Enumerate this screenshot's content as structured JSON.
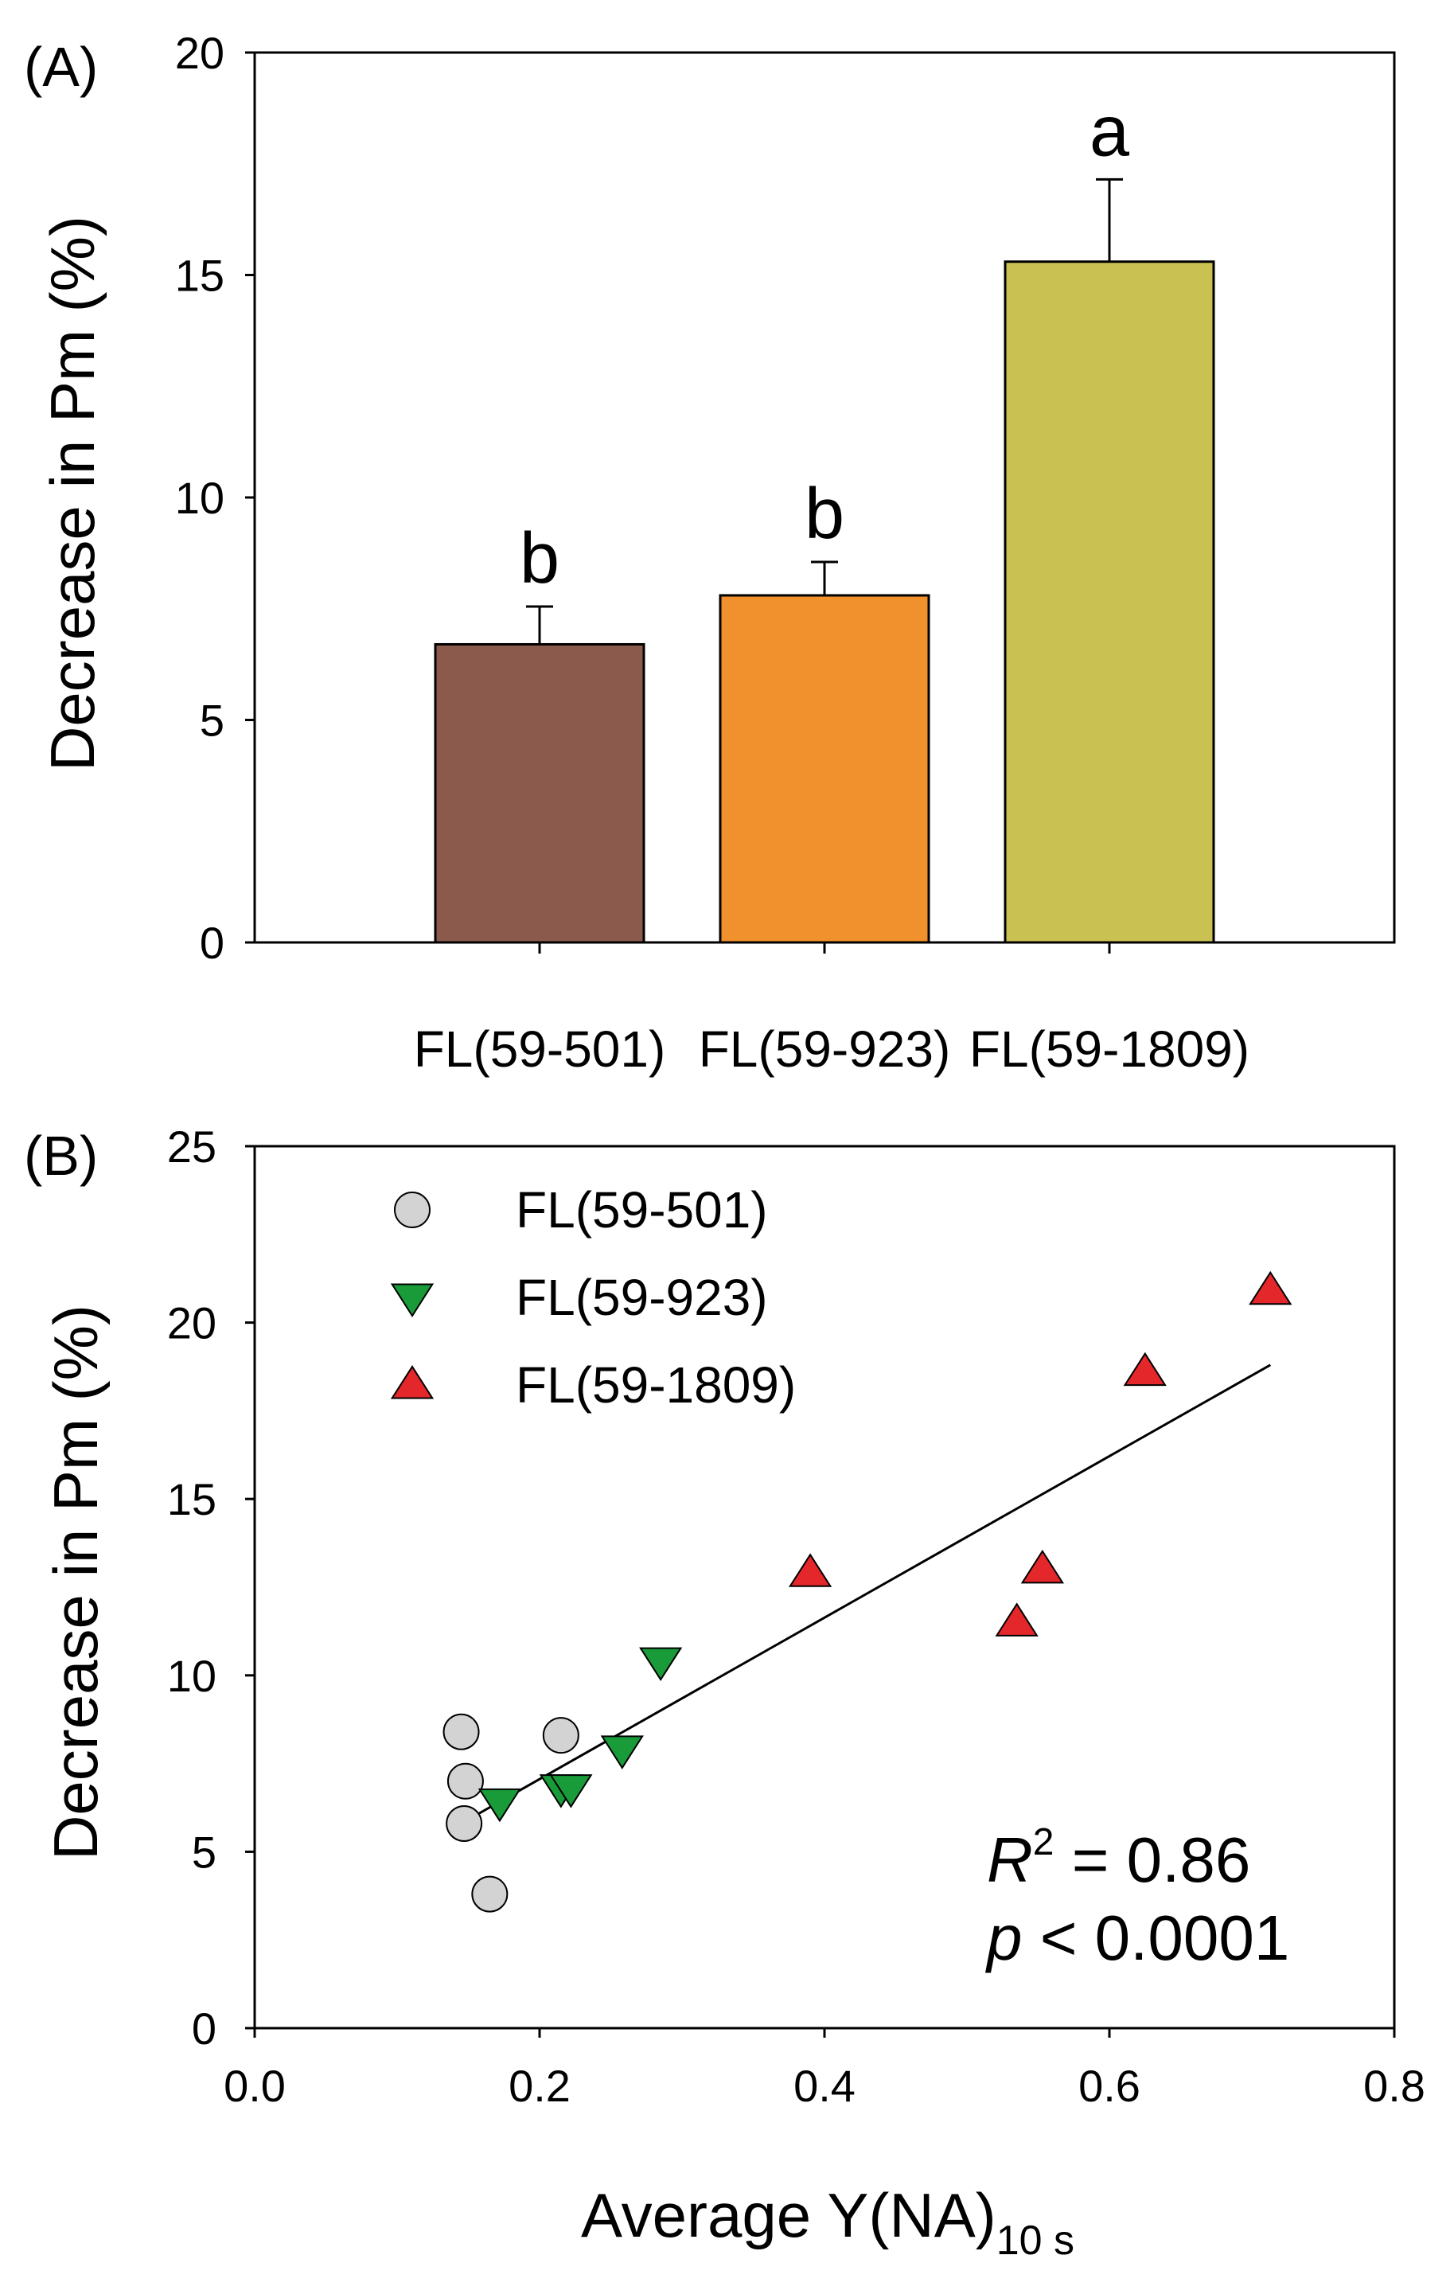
{
  "chart_data": [
    {
      "type": "bar",
      "panel_label": "(A)",
      "title": "",
      "xlabel": "",
      "ylabel": "Decrease in Pm (%)",
      "ylim": [
        0,
        20
      ],
      "yticks": [
        "0",
        "5",
        "10",
        "15",
        "20"
      ],
      "categories": [
        "FL(59-501)",
        "FL(59-923)",
        "FL(59-1809)"
      ],
      "values": [
        6.7,
        7.8,
        15.3
      ],
      "errors": [
        0.85,
        0.75,
        1.85
      ],
      "letters": [
        "b",
        "b",
        "a"
      ],
      "colors": [
        "#8B5A4C",
        "#F0912D",
        "#C9C152"
      ]
    },
    {
      "type": "scatter",
      "panel_label": "(B)",
      "title": "",
      "xlabel": "Average Y(NA)",
      "xlabel_subscript": "10 s",
      "ylabel": "Decrease in Pm (%)",
      "xlim": [
        0.0,
        0.8
      ],
      "ylim": [
        0,
        25
      ],
      "xticks": [
        "0.0",
        "0.2",
        "0.4",
        "0.6",
        "0.8"
      ],
      "yticks": [
        "0",
        "5",
        "10",
        "15",
        "20",
        "25"
      ],
      "series": [
        {
          "name": "FL(59-501)",
          "marker": "circle",
          "color": "#D3D3D3",
          "points": [
            [
              0.145,
              8.4
            ],
            [
              0.148,
              7.0
            ],
            [
              0.147,
              5.8
            ],
            [
              0.165,
              3.8
            ],
            [
              0.215,
              8.3
            ]
          ]
        },
        {
          "name": "FL(59-923)",
          "marker": "triangle-down",
          "color": "#1A9B3A",
          "points": [
            [
              0.172,
              6.4
            ],
            [
              0.215,
              6.8
            ],
            [
              0.222,
              6.8
            ],
            [
              0.258,
              7.9
            ],
            [
              0.285,
              10.4
            ]
          ]
        },
        {
          "name": "FL(59-1809)",
          "marker": "triangle-up",
          "color": "#E3272B",
          "points": [
            [
              0.39,
              12.9
            ],
            [
              0.535,
              11.5
            ],
            [
              0.553,
              13.0
            ],
            [
              0.625,
              18.6
            ],
            [
              0.713,
              20.9
            ]
          ]
        }
      ],
      "fit_line": {
        "x": [
          0.145,
          0.713
        ],
        "y": [
          5.8,
          18.8
        ]
      },
      "legend_position": "top-left",
      "annotation": {
        "r2_symbol": "R",
        "r2_sup": "2",
        "r2_value": " = 0.86",
        "p_symbol": "p",
        "p_value": " < 0.0001"
      }
    }
  ]
}
